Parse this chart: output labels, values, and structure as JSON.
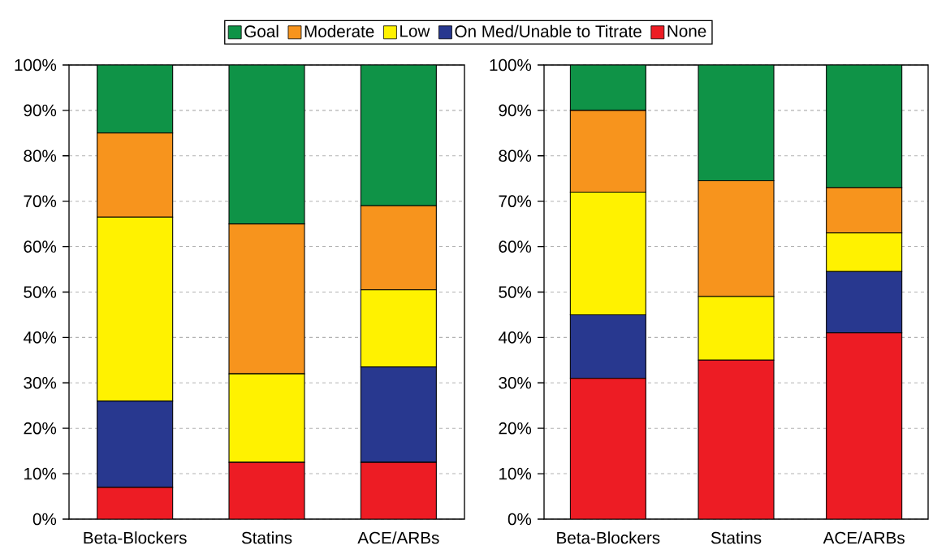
{
  "chart_data": [
    {
      "type": "bar",
      "stacked": true,
      "categories": [
        "Beta-Blockers",
        "Statins",
        "ACE/ARBs"
      ],
      "series": [
        {
          "name": "None",
          "color": "#ed1c24",
          "values": [
            7,
            12.5,
            12.5
          ]
        },
        {
          "name": "On Med/Unable to Titrate",
          "color": "#28388f",
          "values": [
            19,
            0,
            21
          ]
        },
        {
          "name": "Low",
          "color": "#fff200",
          "values": [
            40.5,
            19.5,
            17
          ]
        },
        {
          "name": "Moderate",
          "color": "#f7941d",
          "values": [
            18.5,
            33,
            18.5
          ]
        },
        {
          "name": "Goal",
          "color": "#0f9347",
          "values": [
            15,
            35,
            31
          ]
        }
      ],
      "ylim": [
        0,
        100
      ],
      "yticks": [
        {
          "value": 0,
          "label": "0%"
        },
        {
          "value": 10,
          "label": "10%"
        },
        {
          "value": 20,
          "label": "20%"
        },
        {
          "value": 30,
          "label": "30%"
        },
        {
          "value": 40,
          "label": "40%"
        },
        {
          "value": 50,
          "label": "50%"
        },
        {
          "value": 60,
          "label": "60%"
        },
        {
          "value": 70,
          "label": "70%"
        },
        {
          "value": 80,
          "label": "80%"
        },
        {
          "value": 90,
          "label": "90%"
        },
        {
          "value": 100,
          "label": "100%"
        }
      ],
      "grid": "y",
      "legend": "top"
    },
    {
      "type": "bar",
      "stacked": true,
      "categories": [
        "Beta-Blockers",
        "Statins",
        "ACE/ARBs"
      ],
      "series": [
        {
          "color": "#ed1c24",
          "values": [
            31,
            35,
            41
          ]
        },
        {
          "color": "#28388f",
          "values": [
            14,
            0,
            13.5
          ]
        },
        {
          "color": "#fff200",
          "values": [
            27,
            14,
            8.5
          ]
        },
        {
          "color": "#f7941d",
          "values": [
            18,
            25.5,
            10
          ]
        },
        {
          "color": "#0f9347",
          "values": [
            10,
            25.5,
            27
          ]
        }
      ],
      "ylim": [
        0,
        100
      ],
      "yticks": [
        {
          "value": 0,
          "label": "0%"
        },
        {
          "value": 10,
          "label": "10%"
        },
        {
          "value": 20,
          "label": "20%"
        },
        {
          "value": 30,
          "label": "30%"
        },
        {
          "value": 40,
          "label": "40%"
        },
        {
          "value": 50,
          "label": "50%"
        },
        {
          "value": 60,
          "label": "60%"
        },
        {
          "value": 70,
          "label": "70%"
        },
        {
          "value": 80,
          "label": "80%"
        },
        {
          "value": 90,
          "label": "90%"
        },
        {
          "value": 100,
          "label": "100%"
        }
      ],
      "grid": "y"
    }
  ]
}
